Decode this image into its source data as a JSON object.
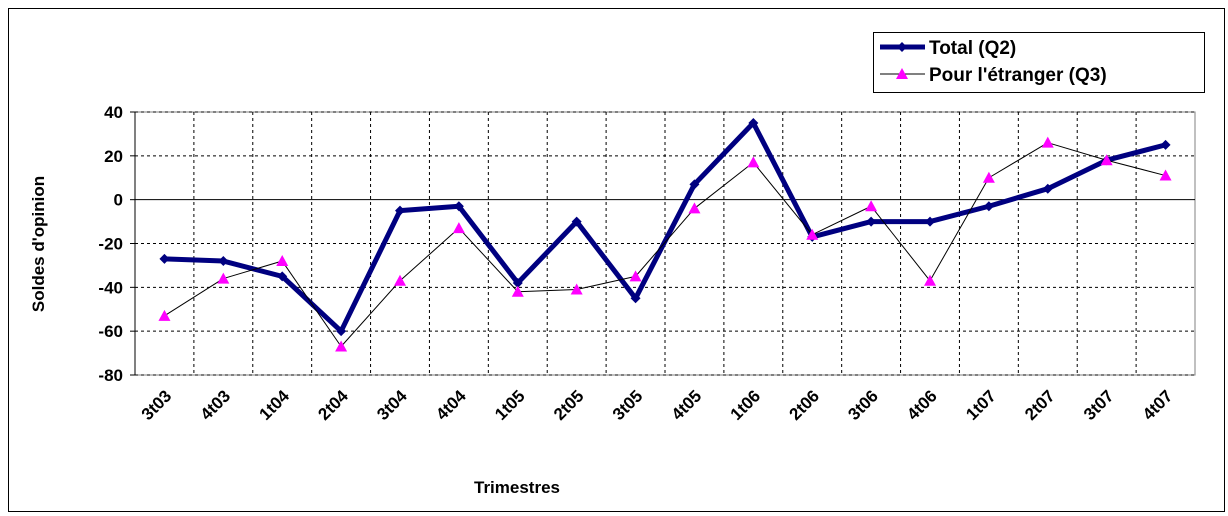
{
  "chart_data": {
    "type": "line",
    "x_label": "Trimestres",
    "y_label": "Soldes d'opinion",
    "categories": [
      "3t03",
      "4t03",
      "1t04",
      "2t04",
      "3t04",
      "4t04",
      "1t05",
      "2t05",
      "3t05",
      "4t05",
      "1t06",
      "2t06",
      "3t06",
      "4t06",
      "1t07",
      "2t07",
      "3t07",
      "4t07"
    ],
    "series": [
      {
        "name": "Total (Q2)",
        "color": "#000080",
        "line_color": "#000080",
        "marker": "diamond",
        "line_width": 5,
        "values": [
          -27,
          -28,
          -35,
          -60,
          -5,
          -3,
          -38,
          -10,
          -45,
          7,
          35,
          -17,
          -10,
          -10,
          -3,
          5,
          18,
          25
        ]
      },
      {
        "name": "Pour l'étranger (Q3)",
        "color": "#ff00ff",
        "line_color": "#000000",
        "marker": "triangle",
        "line_width": 1,
        "values": [
          -53,
          -36,
          -28,
          -67,
          -37,
          -13,
          -42,
          -41,
          -35,
          -4,
          17,
          -16,
          -3,
          -37,
          10,
          26,
          18,
          11
        ]
      }
    ],
    "ylim": [
      -80,
      40
    ],
    "yticks": [
      -80,
      -60,
      -40,
      -20,
      0,
      20,
      40
    ],
    "grid": true,
    "legend": "upper right"
  }
}
